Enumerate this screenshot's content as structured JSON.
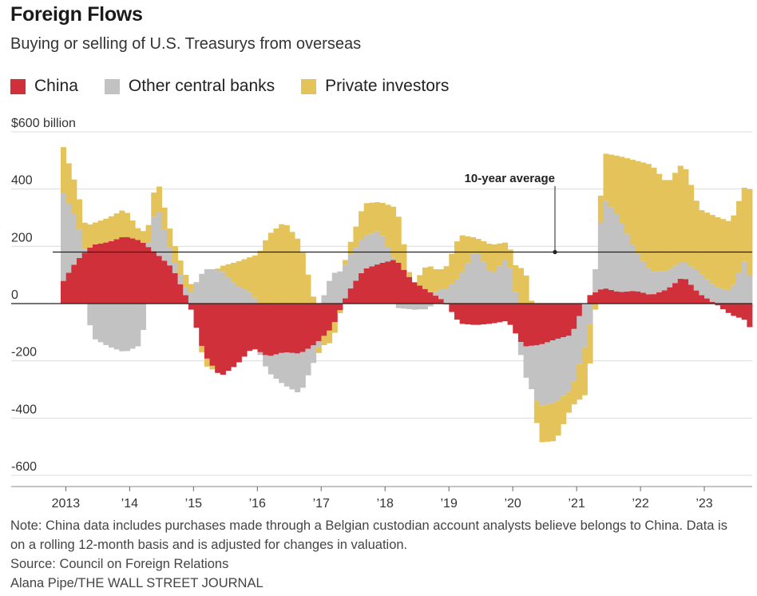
{
  "title": "Foreign Flows",
  "subtitle": "Buying or selling of U.S. Treasurys from overseas",
  "legend": [
    {
      "label": "China",
      "color": "#d0303a"
    },
    {
      "label": "Other central banks",
      "color": "#c2c2c2"
    },
    {
      "label": "Private investors",
      "color": "#e3c35a"
    }
  ],
  "note": "Note: China data includes purchases made through a Belgian custodian account analysts believe belongs to China. Data is on a rolling 12-month basis and is adjusted for changes in valuation.",
  "source": "Source: Council on Foreign Relations",
  "credit": "Alana Pipe/THE WALL STREET JOURNAL",
  "chart_data": {
    "type": "area",
    "stacked": true,
    "unit": "billion dollars, rolling 12-month",
    "ylim": [
      -600,
      600
    ],
    "y_ticks": [
      600,
      400,
      200,
      0,
      -200,
      -400,
      -600
    ],
    "y_tick_labels": [
      "$600 billion",
      "400",
      "200",
      "0",
      "-200",
      "-400",
      "-600"
    ],
    "x_ticks": [
      2013,
      2014,
      2015,
      2016,
      2017,
      2018,
      2019,
      2020,
      2021,
      2022,
      2023
    ],
    "x_tick_labels": [
      "2013",
      "’14",
      "’15",
      "’16",
      "’17",
      "’18",
      "’19",
      "’20",
      "’21",
      "’22",
      "’23"
    ],
    "x_range": [
      2012.92,
      2023.75
    ],
    "reference_line": {
      "label": "10-year average",
      "value": 180
    },
    "x": [
      2012.92,
      2013.17,
      2013.42,
      2013.67,
      2013.92,
      2014.17,
      2014.42,
      2014.67,
      2014.92,
      2015.17,
      2015.42,
      2015.67,
      2015.92,
      2016.17,
      2016.42,
      2016.67,
      2016.92,
      2017.17,
      2017.42,
      2017.67,
      2017.92,
      2018.17,
      2018.42,
      2018.67,
      2018.92,
      2019.17,
      2019.42,
      2019.67,
      2019.92,
      2020.17,
      2020.42,
      2020.67,
      2020.92,
      2021.17,
      2021.42,
      2021.67,
      2021.92,
      2022.17,
      2022.42,
      2022.67,
      2022.92,
      2023.17,
      2023.42,
      2023.62,
      2023.75
    ],
    "series": [
      {
        "name": "China",
        "values": [
          65,
          150,
          205,
          215,
          235,
          220,
          175,
          125,
          10,
          -180,
          -255,
          -215,
          -155,
          -185,
          -170,
          -175,
          -140,
          -85,
          40,
          120,
          140,
          155,
          80,
          45,
          10,
          -70,
          -75,
          -70,
          -60,
          -150,
          -145,
          -125,
          -110,
          25,
          55,
          40,
          45,
          30,
          50,
          95,
          35,
          0,
          -40,
          -55,
          -95
        ]
      },
      {
        "name": "Other central banks",
        "values": [
          340,
          145,
          -120,
          -150,
          -170,
          -145,
          175,
          40,
          25,
          120,
          120,
          65,
          35,
          -55,
          -115,
          -140,
          -45,
          105,
          120,
          115,
          115,
          -15,
          -20,
          -20,
          45,
          95,
          190,
          100,
          165,
          -90,
          -215,
          -220,
          -190,
          -145,
          315,
          260,
          140,
          80,
          65,
          55,
          75,
          60,
          45,
          150,
          75
        ]
      },
      {
        "name": "Private investors",
        "values": [
          170,
          110,
          75,
          85,
          95,
          30,
          95,
          60,
          40,
          -35,
          10,
          80,
          130,
          240,
          285,
          215,
          -15,
          -50,
          30,
          115,
          100,
          195,
          -20,
          95,
          65,
          145,
          40,
          105,
          50,
          140,
          -125,
          -135,
          -60,
          -190,
          155,
          215,
          315,
          375,
          305,
          345,
          220,
          245,
          240,
          255,
          322
        ]
      }
    ]
  }
}
